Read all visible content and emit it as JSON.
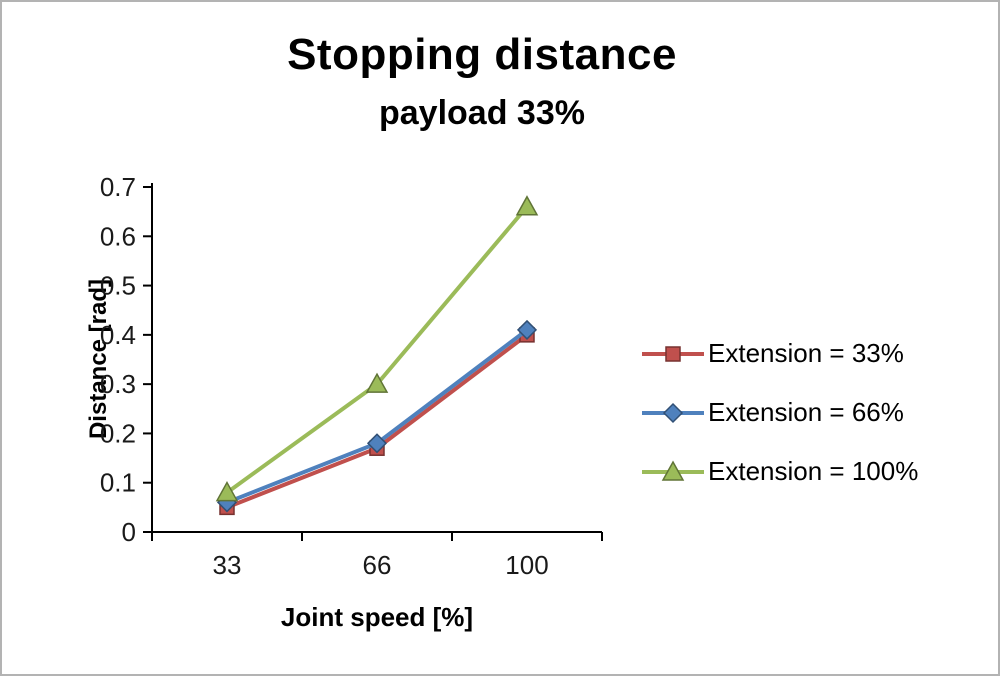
{
  "title": "Stopping distance",
  "subtitle": "payload 33%",
  "chart_data": {
    "type": "line",
    "categories": [
      "33",
      "66",
      "100"
    ],
    "series": [
      {
        "name": "Extension = 33%",
        "marker": "square",
        "color": "#c0504d",
        "values": [
          0.05,
          0.17,
          0.4
        ]
      },
      {
        "name": "Extension = 66%",
        "marker": "diamond",
        "color": "#4f81bd",
        "values": [
          0.06,
          0.18,
          0.41
        ]
      },
      {
        "name": "Extension = 100%",
        "marker": "triangle",
        "color": "#9bbb59",
        "values": [
          0.08,
          0.3,
          0.66
        ]
      }
    ],
    "xlabel": "Joint speed [%]",
    "ylabel": "Distance [rad]",
    "ylim": [
      0,
      0.7
    ],
    "ytick_step": 0.1,
    "yticks": [
      "0",
      "0.1",
      "0.2",
      "0.3",
      "0.4",
      "0.5",
      "0.6",
      "0.7"
    ],
    "grid": false,
    "legend_position": "right",
    "axis_color": "#000000"
  }
}
